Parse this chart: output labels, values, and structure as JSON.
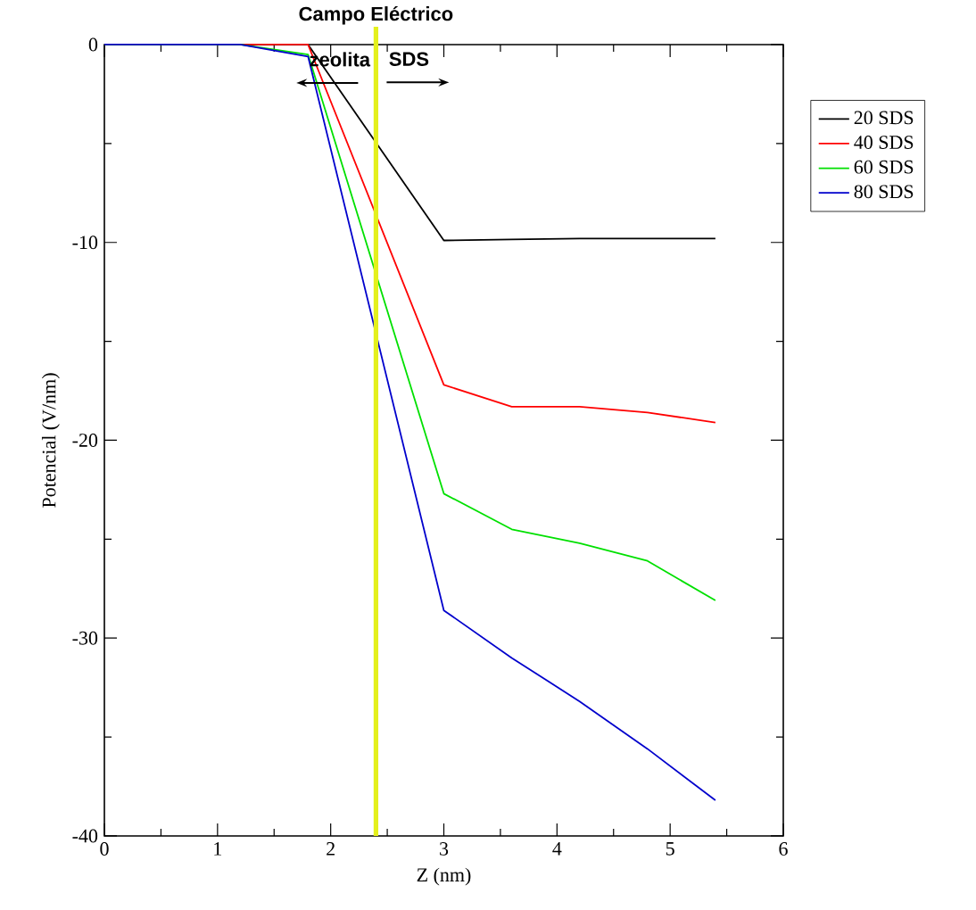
{
  "chart_data": {
    "type": "line",
    "xlabel": "Z (nm)",
    "ylabel": "Potencial (V/nm)",
    "x": [
      0,
      0.6,
      1.2,
      1.8,
      3.0,
      3.6,
      4.2,
      4.8,
      5.4
    ],
    "series": [
      {
        "name": "20 SDS",
        "color": "#000000",
        "values": [
          0,
          0,
          0,
          0,
          -9.9,
          -9.85,
          -9.8,
          -9.8,
          -9.8
        ]
      },
      {
        "name": "40 SDS",
        "color": "#ff0000",
        "values": [
          0,
          0,
          0,
          0,
          -17.2,
          -18.3,
          -18.3,
          -18.6,
          -19.1
        ]
      },
      {
        "name": "60 SDS",
        "color": "#00e000",
        "values": [
          0,
          0,
          0,
          -0.5,
          -22.7,
          -24.5,
          -25.2,
          -26.1,
          -28.1
        ]
      },
      {
        "name": "80 SDS",
        "color": "#0000cc",
        "values": [
          0,
          0,
          0,
          -0.6,
          -28.6,
          -31.0,
          -33.2,
          -35.6,
          -38.2
        ]
      }
    ],
    "xlim": [
      0,
      6
    ],
    "xticks": [
      0,
      1,
      2,
      3,
      4,
      5,
      6
    ],
    "ylim": [
      -40,
      0
    ],
    "yticks": [
      -40,
      -30,
      -20,
      -10,
      0
    ],
    "ref_lines": [
      {
        "axis": "x",
        "value": 2.4,
        "label": "Campo Eléctrico",
        "color": "#e4f01c"
      }
    ],
    "annotations": [
      "zeolita",
      "SDS"
    ],
    "legend": "right",
    "grid": false,
    "marker": "none",
    "line_style": "solid"
  }
}
